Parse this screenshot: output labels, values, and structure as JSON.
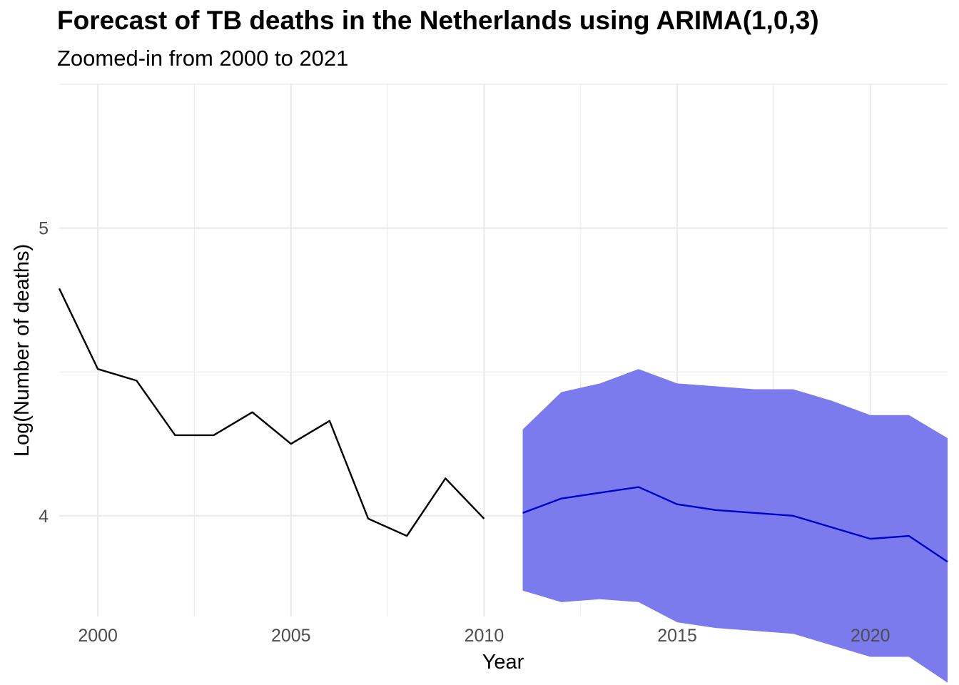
{
  "chart_data": {
    "type": "line",
    "title": "Forecast of TB deaths in the Netherlands using ARIMA(1,0,3)",
    "subtitle": "Zoomed-in from 2000 to 2021",
    "xlabel": "Year",
    "ylabel": "Log(Number of deaths)",
    "xlim": [
      1999,
      2022
    ],
    "ylim": [
      3.65,
      5.5
    ],
    "x_ticks": [
      2000,
      2005,
      2010,
      2015,
      2020
    ],
    "y_ticks": [
      4,
      5
    ],
    "grid": true,
    "historical": {
      "color": "#000000",
      "x": [
        1999,
        2000,
        2001,
        2002,
        2003,
        2004,
        2005,
        2006,
        2007,
        2008,
        2009,
        2010
      ],
      "y": [
        4.79,
        4.51,
        4.47,
        4.28,
        4.28,
        4.36,
        4.25,
        4.33,
        3.99,
        3.93,
        4.13,
        3.99
      ]
    },
    "forecast": {
      "color": "#0000cc",
      "x": [
        2011,
        2012,
        2013,
        2014,
        2015,
        2016,
        2017,
        2018,
        2019,
        2020,
        2021,
        2022
      ],
      "y": [
        4.01,
        4.06,
        4.08,
        4.1,
        4.04,
        4.02,
        4.01,
        4.0,
        3.96,
        3.92,
        3.93,
        3.84
      ]
    },
    "interval": {
      "color": "#7b7bee",
      "x": [
        2011,
        2012,
        2013,
        2014,
        2015,
        2016,
        2017,
        2018,
        2019,
        2020,
        2021,
        2022
      ],
      "lower": [
        3.74,
        3.7,
        3.71,
        3.7,
        3.63,
        3.61,
        3.6,
        3.59,
        3.55,
        3.51,
        3.51,
        3.42
      ],
      "upper": [
        4.3,
        4.43,
        4.46,
        4.51,
        4.46,
        4.45,
        4.44,
        4.44,
        4.4,
        4.35,
        4.35,
        4.27
      ]
    }
  }
}
